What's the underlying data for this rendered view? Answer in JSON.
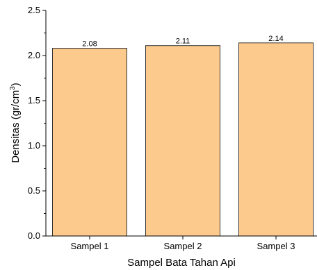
{
  "chart_data": {
    "type": "bar",
    "categories": [
      "Sampel 1",
      "Sampel 2",
      "Sampel 3"
    ],
    "values": [
      2.08,
      2.11,
      2.14
    ],
    "data_labels": [
      "2.08",
      "2.11",
      "2.14"
    ],
    "title": "",
    "xlabel": "Sampel Bata Tahan Api",
    "ylabel": {
      "base": "Densitas (gr/cm",
      "sup": "3",
      "close": ")"
    },
    "ylim": [
      0,
      2.5
    ],
    "y_ticks": [
      "0.0",
      "0.5",
      "1.0",
      "1.5",
      "2.0",
      "2.5"
    ],
    "grid": false,
    "legend": "none",
    "colors": {
      "bar_fill": "#fdca8e",
      "bar_stroke": "#333333",
      "axis": "#000000"
    }
  }
}
